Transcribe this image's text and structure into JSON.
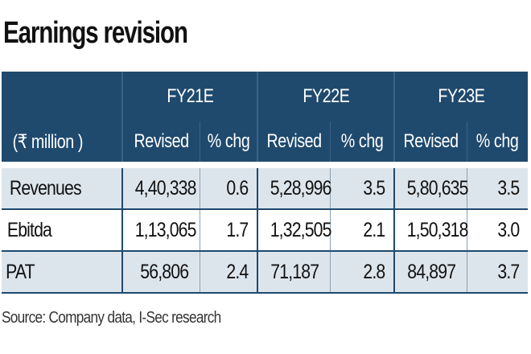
{
  "title": "Earnings revision",
  "table": {
    "unit_label": "(₹ million )",
    "years": [
      "FY21E",
      "FY22E",
      "FY23E"
    ],
    "subheaders": [
      "Revised",
      "% chg"
    ],
    "rows": [
      {
        "label": "Revenues",
        "values": [
          "4,40,338",
          "0.6",
          "5,28,996",
          "3.5",
          "5,80,635",
          "3.5"
        ]
      },
      {
        "label": "Ebitda",
        "values": [
          "1,13,065",
          "1.7",
          "1,32,505",
          "2.1",
          "1,50,318",
          "3.0"
        ]
      },
      {
        "label": "PAT",
        "values": [
          "56,806",
          "2.4",
          "71,187",
          "2.8",
          "84,897",
          "3.7"
        ]
      }
    ]
  },
  "source": "Source: Company data, I-Sec research",
  "colors": {
    "header_bg": "#1f4a6e",
    "row_alt_bg": "#dde5ec"
  }
}
